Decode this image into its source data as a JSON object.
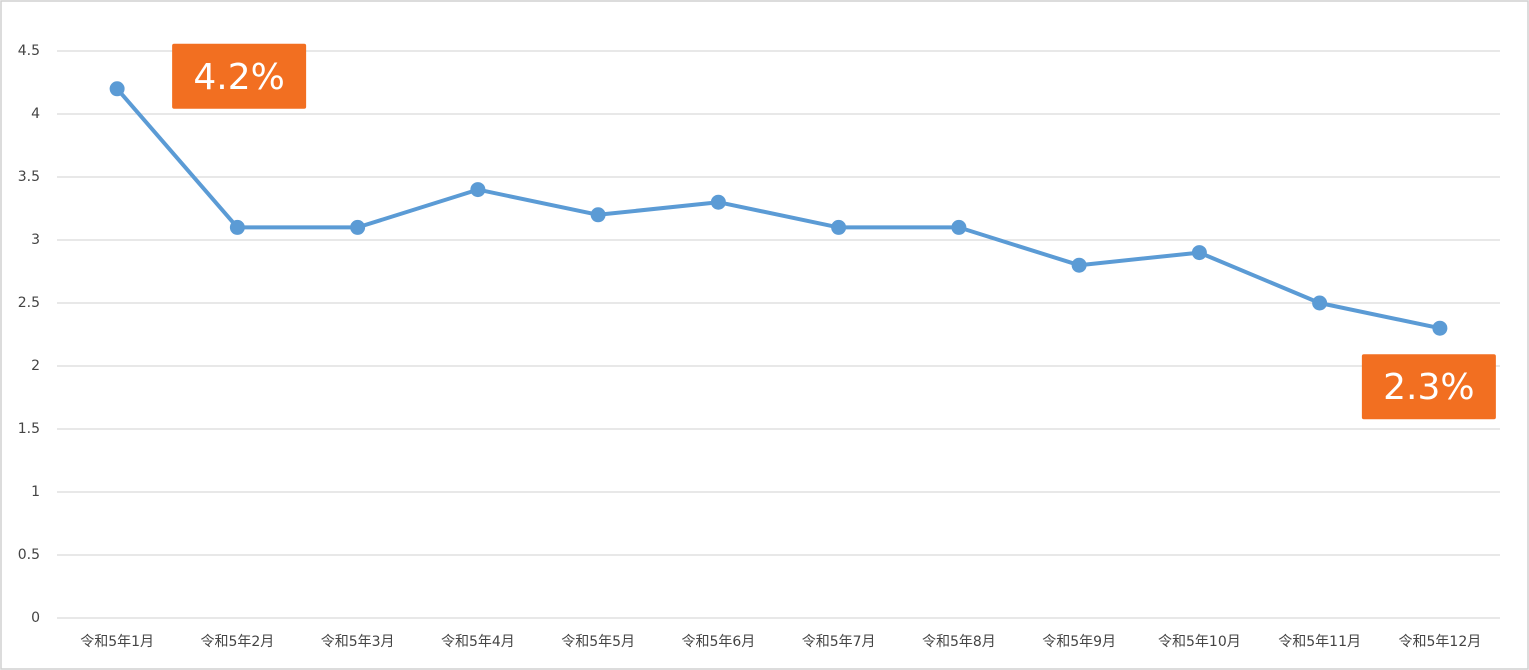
{
  "chart_data": {
    "type": "line",
    "categories": [
      "令和5年1月",
      "令和5年2月",
      "令和5年3月",
      "令和5年4月",
      "令和5年5月",
      "令和5年6月",
      "令和5年7月",
      "令和5年8月",
      "令和5年9月",
      "令和5年10月",
      "令和5年11月",
      "令和5年12月"
    ],
    "values": [
      4.2,
      3.1,
      3.1,
      3.4,
      3.2,
      3.3,
      3.1,
      3.1,
      2.8,
      2.9,
      2.5,
      2.3
    ],
    "value_labels": [
      "4.2%",
      null,
      null,
      null,
      null,
      null,
      null,
      null,
      null,
      null,
      null,
      "2.3%"
    ],
    "color": "#5b9bd5",
    "label_color": "#f26f21",
    "ylim": [
      0,
      4.5
    ],
    "yticks": [
      0,
      0.5,
      1,
      1.5,
      2,
      2.5,
      3,
      3.5,
      4,
      4.5
    ],
    "grid": true
  }
}
